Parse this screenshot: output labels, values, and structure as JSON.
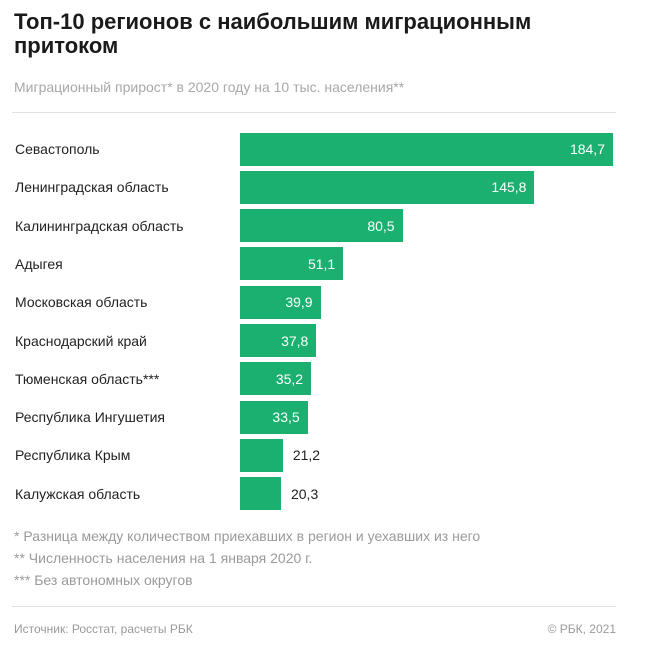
{
  "chart_data": {
    "type": "bar",
    "orientation": "horizontal",
    "title": "Топ-10 регионов с наибольшим миграционным притоком",
    "subtitle": "Миграционный прирост* в 2020 году на 10 тыс. населения**",
    "categories": [
      "Севастополь",
      "Ленинградская область",
      "Калининградская область",
      "Адыгея",
      "Московская область",
      "Краснодарский край",
      "Тюменская область***",
      "Республика Ингушетия",
      "Республика Крым",
      "Калужская область"
    ],
    "values": [
      184.7,
      145.8,
      80.5,
      51.1,
      39.9,
      37.8,
      35.2,
      33.5,
      21.2,
      20.3
    ],
    "value_labels": [
      "184,7",
      "145,8",
      "80,5",
      "51,1",
      "39,9",
      "37,8",
      "35,2",
      "33,5",
      "21,2",
      "20,3"
    ],
    "xlim": [
      0,
      184.7
    ],
    "grid": false,
    "bar_color": "#1bb06f",
    "footnotes": [
      "* Разница между количеством приехавших в регион и уехавших из него",
      "** Численность населения на 1 января 2020 г.",
      "*** Без автономных округов"
    ],
    "source": "Источник: Росстат, расчеты РБК",
    "copyright": "© РБК, 2021"
  }
}
